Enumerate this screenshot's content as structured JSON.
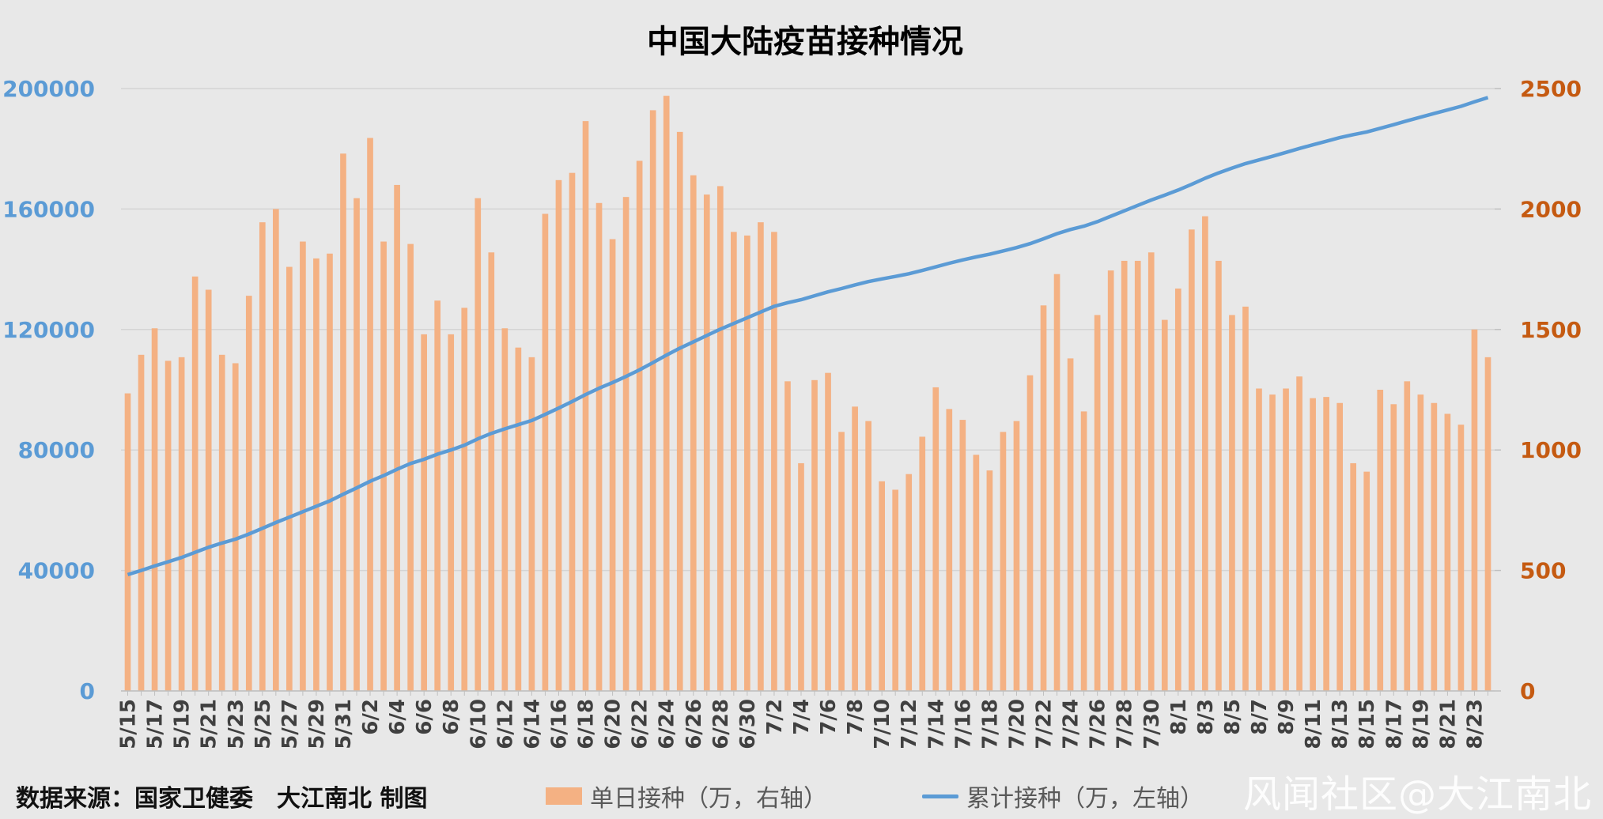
{
  "footer": {
    "source": "数据来源：国家卫健委　大江南北 制图",
    "watermark": "风闻社区@大江南北"
  },
  "colors": {
    "background": "#e8e8e8",
    "bar": "#f4b183",
    "line": "#5b9bd5",
    "left_axis": "#5b9bd5",
    "right_axis": "#c55a11",
    "grid": "#d4d4d4",
    "title": "#000000"
  },
  "chart_data": {
    "type": "bar",
    "title": "中国大陆疫苗接种情况",
    "legend_position": "bottom",
    "grid": true,
    "x_tick_every": 2,
    "categories": [
      "5/15",
      "5/16",
      "5/17",
      "5/18",
      "5/19",
      "5/20",
      "5/21",
      "5/22",
      "5/23",
      "5/24",
      "5/25",
      "5/26",
      "5/27",
      "5/28",
      "5/29",
      "5/30",
      "5/31",
      "6/1",
      "6/2",
      "6/3",
      "6/4",
      "6/5",
      "6/6",
      "6/7",
      "6/8",
      "6/9",
      "6/10",
      "6/11",
      "6/12",
      "6/13",
      "6/14",
      "6/15",
      "6/16",
      "6/17",
      "6/18",
      "6/19",
      "6/20",
      "6/21",
      "6/22",
      "6/23",
      "6/24",
      "6/25",
      "6/26",
      "6/27",
      "6/28",
      "6/29",
      "6/30",
      "7/1",
      "7/2",
      "7/3",
      "7/4",
      "7/5",
      "7/6",
      "7/7",
      "7/8",
      "7/9",
      "7/10",
      "7/11",
      "7/12",
      "7/13",
      "7/14",
      "7/15",
      "7/16",
      "7/17",
      "7/18",
      "7/19",
      "7/20",
      "7/21",
      "7/22",
      "7/23",
      "7/24",
      "7/25",
      "7/26",
      "7/27",
      "7/28",
      "7/29",
      "7/30",
      "7/31",
      "8/1",
      "8/2",
      "8/3",
      "8/4",
      "8/5",
      "8/6",
      "8/7",
      "8/8",
      "8/9",
      "8/10",
      "8/11",
      "8/12",
      "8/13",
      "8/14",
      "8/15",
      "8/16",
      "8/17",
      "8/18",
      "8/19",
      "8/20",
      "8/21",
      "8/22",
      "8/23",
      "8/24"
    ],
    "y_left": {
      "min": 0,
      "max": 200000,
      "ticks": [
        0,
        40000,
        80000,
        120000,
        160000,
        200000
      ]
    },
    "y_right": {
      "min": 0,
      "max": 2500,
      "ticks": [
        0,
        500,
        1000,
        1500,
        2000,
        2500
      ]
    },
    "series": [
      {
        "name": "单日接种（万，右轴）",
        "type": "bar",
        "axis": "right",
        "values": [
          1235,
          1395,
          1505,
          1370,
          1385,
          1720,
          1665,
          1395,
          1360,
          1640,
          1945,
          2000,
          1760,
          1865,
          1795,
          1815,
          2230,
          2045,
          2295,
          1865,
          2100,
          1855,
          1480,
          1620,
          1480,
          1590,
          2045,
          1820,
          1505,
          1425,
          1385,
          1980,
          2120,
          2150,
          2365,
          2025,
          1875,
          2050,
          2200,
          2410,
          2470,
          2320,
          2140,
          2060,
          2095,
          1905,
          1890,
          1945,
          1905,
          1285,
          945,
          1290,
          1320,
          1075,
          1180,
          1120,
          870,
          835,
          900,
          1055,
          1260,
          1170,
          1125,
          980,
          915,
          1075,
          1120,
          1310,
          1600,
          1730,
          1380,
          1160,
          1560,
          1745,
          1785,
          1785,
          1820,
          1540,
          1670,
          1915,
          1970,
          1785,
          1560,
          1595,
          1255,
          1230,
          1255,
          1305,
          1215,
          1220,
          1195,
          945,
          910,
          1250,
          1190,
          1285,
          1230,
          1195,
          1150,
          1105,
          1500,
          1385
        ]
      },
      {
        "name": "累计接种（万，左轴）",
        "type": "line",
        "axis": "left",
        "values": [
          38600,
          40000,
          41500,
          42900,
          44300,
          46000,
          47700,
          49100,
          50400,
          52100,
          54000,
          55900,
          57700,
          59500,
          61300,
          63100,
          65300,
          67400,
          69600,
          71500,
          73600,
          75500,
          76900,
          78600,
          80000,
          81600,
          83700,
          85500,
          87000,
          88400,
          89800,
          91800,
          93900,
          96100,
          98400,
          100500,
          102400,
          104400,
          106600,
          109000,
          111500,
          113800,
          115900,
          118000,
          120100,
          122000,
          123900,
          125800,
          127700,
          128900,
          129900,
          131200,
          132500,
          133600,
          134800,
          135900,
          136800,
          137600,
          138500,
          139600,
          140800,
          142000,
          143100,
          144100,
          145000,
          146100,
          147200,
          148500,
          150100,
          151800,
          153200,
          154300,
          155800,
          157600,
          159400,
          161200,
          163000,
          164600,
          166300,
          168200,
          170200,
          172000,
          173600,
          175100,
          176300,
          177500,
          178800,
          180100,
          181300,
          182500,
          183700,
          184700,
          185600,
          186800,
          188000,
          189300,
          190500,
          191700,
          192900,
          194100,
          195600,
          197000
        ]
      }
    ]
  }
}
